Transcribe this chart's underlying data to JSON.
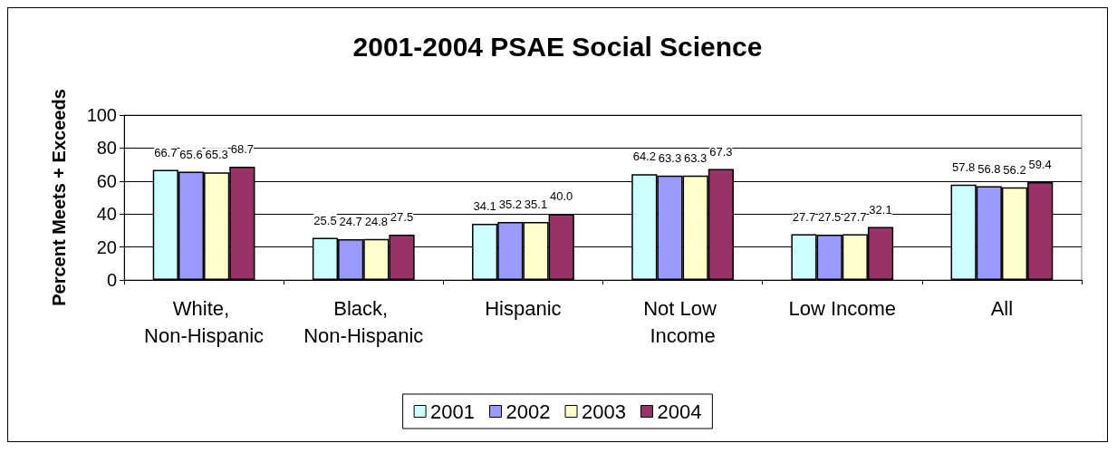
{
  "chart_data": {
    "type": "bar",
    "title": "2001-2004 PSAE Social Science",
    "ylabel": "Percent Meets + Exceeds",
    "categories": [
      "White, Non-Hispanic",
      "Black, Non-Hispanic",
      "Hispanic",
      "Not Low Income",
      "Low Income",
      "All"
    ],
    "series": [
      {
        "name": "2001",
        "color": "#ccffff",
        "values": [
          66.7,
          25.5,
          34.1,
          64.2,
          27.7,
          57.8
        ],
        "value_labels": [
          "66.7",
          "25.5",
          "34.1",
          "64.2",
          "27.7",
          "57.8"
        ]
      },
      {
        "name": "2002",
        "color": "#9999ff",
        "values": [
          65.6,
          24.7,
          35.2,
          63.3,
          27.5,
          56.8
        ],
        "value_labels": [
          "65.6",
          "24.7",
          "35.2",
          "63.3",
          "27.5",
          "56.8"
        ]
      },
      {
        "name": "2003",
        "color": "#ffffcc",
        "values": [
          65.3,
          24.8,
          35.1,
          63.3,
          27.7,
          56.2
        ],
        "value_labels": [
          "65.3",
          "24.8",
          "35.1",
          "63.3",
          "27.7",
          "56.2"
        ]
      },
      {
        "name": "2004",
        "color": "#993366",
        "values": [
          68.7,
          27.5,
          40.0,
          67.3,
          32.1,
          59.4
        ],
        "value_labels": [
          "68.7",
          "27.5",
          "40.0",
          "67.3",
          "32.1",
          "59.4"
        ]
      }
    ],
    "ylim": [
      0,
      100
    ],
    "yticks": [
      0,
      20,
      40,
      60,
      80,
      100
    ],
    "grid": "y",
    "legend": "bottom"
  }
}
